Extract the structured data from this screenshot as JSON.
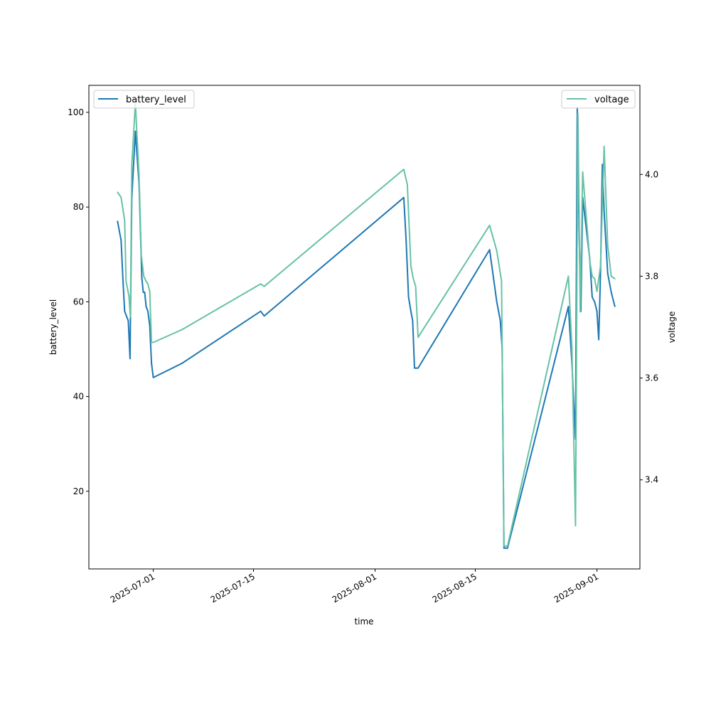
{
  "chart_data": {
    "type": "line",
    "title": "",
    "xlabel": "time",
    "ylabel": "battery_level",
    "y2label": "voltage",
    "x_ticks": [
      "2025-07-01",
      "2025-07-15",
      "2025-08-01",
      "2025-08-15",
      "2025-09-01"
    ],
    "y_ticks": [
      20,
      40,
      60,
      80,
      100
    ],
    "y2_ticks": [
      3.4,
      3.6,
      3.8,
      4.0
    ],
    "xlim": [
      "2025-06-22",
      "2025-09-07"
    ],
    "ylim": [
      3.6,
      105.7
    ],
    "y2lim": [
      3.225,
      4.175
    ],
    "grid": false,
    "series": [
      {
        "name": "battery_level",
        "axis": "left",
        "color": "#1f77b4",
        "legend_position": "top-left",
        "x": [
          "2025-06-26",
          "2025-06-26",
          "2025-06-26",
          "2025-06-26",
          "2025-06-27",
          "2025-06-27",
          "2025-06-27",
          "2025-06-27",
          "2025-06-28",
          "2025-06-28",
          "2025-06-29",
          "2025-06-29",
          "2025-06-29",
          "2025-06-29",
          "2025-06-29",
          "2025-06-30",
          "2025-06-30",
          "2025-06-30",
          "2025-06-30",
          "2025-07-01",
          "2025-07-05",
          "2025-07-16",
          "2025-07-16",
          "2025-08-05",
          "2025-08-05",
          "2025-08-05",
          "2025-08-06",
          "2025-08-06",
          "2025-08-06",
          "2025-08-06",
          "2025-08-07",
          "2025-08-17",
          "2025-08-18",
          "2025-08-18",
          "2025-08-18",
          "2025-08-18",
          "2025-08-19",
          "2025-08-19",
          "2025-08-28",
          "2025-08-28",
          "2025-08-29",
          "2025-08-29",
          "2025-08-29",
          "2025-08-29",
          "2025-08-30",
          "2025-08-31",
          "2025-08-31",
          "2025-08-31",
          "2025-09-01",
          "2025-09-01",
          "2025-09-01",
          "2025-09-01",
          "2025-09-02",
          "2025-09-02",
          "2025-09-03",
          "2025-09-03"
        ],
        "values": [
          77,
          75,
          73,
          65,
          58,
          57,
          56,
          48,
          82,
          96,
          85,
          75,
          65,
          62,
          62,
          59,
          58,
          55,
          47,
          44,
          47,
          58,
          57,
          82,
          73,
          61,
          58,
          56,
          46,
          46,
          46,
          71,
          60,
          58,
          56,
          50,
          8,
          8,
          59,
          47,
          31,
          101,
          75,
          58,
          82,
          69,
          61,
          60,
          58,
          52,
          66,
          89,
          79,
          66,
          62,
          59
        ]
      },
      {
        "name": "voltage",
        "axis": "right",
        "color": "#66c2a5",
        "legend_position": "top-right",
        "x": [
          "2025-06-26",
          "2025-06-26",
          "2025-06-27",
          "2025-06-27",
          "2025-06-27",
          "2025-06-27",
          "2025-06-27",
          "2025-06-28",
          "2025-06-28",
          "2025-06-29",
          "2025-06-29",
          "2025-06-29",
          "2025-06-30",
          "2025-06-30",
          "2025-06-30",
          "2025-06-30",
          "2025-07-01",
          "2025-07-05",
          "2025-07-16",
          "2025-07-16",
          "2025-08-05",
          "2025-08-05",
          "2025-08-06",
          "2025-08-06",
          "2025-08-06",
          "2025-08-07",
          "2025-08-17",
          "2025-08-18",
          "2025-08-18",
          "2025-08-18",
          "2025-08-19",
          "2025-08-19",
          "2025-08-28",
          "2025-08-28",
          "2025-08-29",
          "2025-08-29",
          "2025-08-29",
          "2025-08-30",
          "2025-08-31",
          "2025-08-31",
          "2025-08-31",
          "2025-09-01",
          "2025-09-01",
          "2025-09-02",
          "2025-09-02",
          "2025-09-03",
          "2025-09-03"
        ],
        "values": [
          3.965,
          3.955,
          3.91,
          3.79,
          3.775,
          3.76,
          3.72,
          4.02,
          4.14,
          4.0,
          3.84,
          3.8,
          3.79,
          3.785,
          3.77,
          3.67,
          3.67,
          3.695,
          3.785,
          3.78,
          4.01,
          3.98,
          3.82,
          3.795,
          3.78,
          3.68,
          3.9,
          3.85,
          3.82,
          3.79,
          3.27,
          3.27,
          3.8,
          3.66,
          3.31,
          4.12,
          3.73,
          4.005,
          3.83,
          3.8,
          3.795,
          3.77,
          3.82,
          4.055,
          3.86,
          3.8,
          3.795
        ]
      }
    ]
  }
}
